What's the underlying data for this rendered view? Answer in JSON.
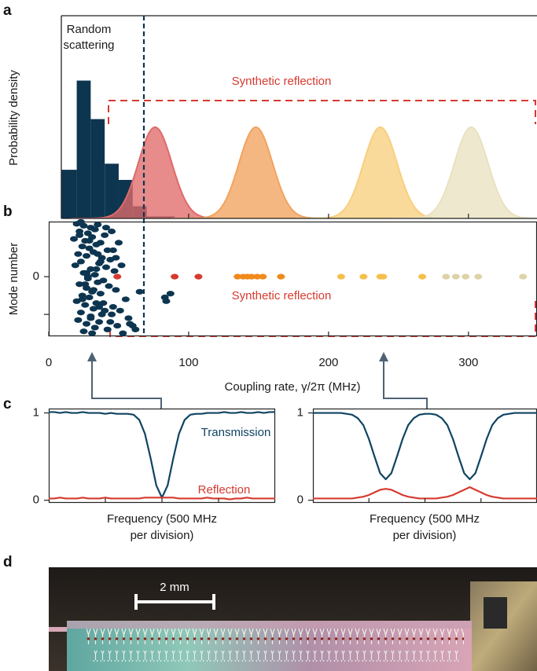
{
  "panel_labels": [
    "a",
    "b",
    "c",
    "d"
  ],
  "chart_data": [
    {
      "type": "histogram",
      "ylabel": "Probability density",
      "annotation_lines": [
        "Random",
        "scattering"
      ],
      "synthetic_label": "Synthetic reflection",
      "xlim": [
        0,
        349
      ],
      "ylim": [
        0,
        1
      ],
      "bins": [
        9,
        20,
        30,
        40,
        50,
        60,
        70,
        90
      ],
      "values": [
        0.24,
        0.68,
        0.49,
        0.27,
        0.19,
        0.06,
        0.01
      ],
      "color": "#0d3550",
      "vline": 68,
      "curves": [
        {
          "mean": 76,
          "sd": 12,
          "peak": 0.45,
          "color": "#e06a6a"
        },
        {
          "mean": 148,
          "sd": 12,
          "peak": 0.45,
          "color": "#f2a35e"
        },
        {
          "mean": 237,
          "sd": 12,
          "peak": 0.45,
          "color": "#f8cf7e"
        },
        {
          "mean": 302,
          "sd": 12,
          "peak": 0.45,
          "color": "#e9e1c0"
        }
      ]
    },
    {
      "type": "scatter",
      "ylabel": "Mode number",
      "xlabel": "Coupling rate, γ/2π (MHz)",
      "synthetic_label": "Synthetic reflection",
      "xlim": [
        0,
        349
      ],
      "ylim": [
        -1.58,
        1.46
      ],
      "xticks": [
        0,
        100,
        200,
        300
      ],
      "yticks": [
        0,
        {
          "value": -1,
          "label": null
        }
      ],
      "vline": 68,
      "series": [
        {
          "color": "#0d3550",
          "x": [
            20,
            25,
            30,
            35,
            22,
            28,
            33,
            40,
            18,
            26,
            31,
            37,
            45,
            24,
            29,
            34,
            42,
            21,
            27,
            32,
            38,
            50,
            23,
            36,
            44,
            19,
            30,
            41,
            47,
            25,
            33,
            28,
            39,
            52,
            22,
            35,
            27,
            43,
            31,
            48,
            24,
            37,
            29,
            55,
            20,
            34,
            26,
            46,
            32,
            40,
            23,
            38,
            30,
            57,
            21,
            36,
            27,
            49,
            33,
            42,
            25,
            31,
            44,
            60,
            22,
            35,
            28,
            51,
            37,
            24,
            41,
            30,
            46,
            26,
            34,
            53,
            29,
            39,
            23,
            45,
            32,
            62,
            27,
            36,
            48,
            58,
            65,
            83,
            87,
            84
          ],
          "values": [
            1.4,
            1.35,
            1.3,
            1.38,
            1.2,
            1.15,
            1.25,
            1.1,
            1.0,
            0.95,
            1.05,
            0.9,
            1.2,
            0.8,
            0.75,
            0.85,
            0.7,
            0.6,
            0.55,
            0.65,
            0.5,
            0.9,
            0.4,
            0.35,
            0.45,
            0.3,
            0.2,
            0.25,
            0.15,
            0.1,
            0.05,
            -0.05,
            -0.1,
            0.3,
            -0.2,
            -0.15,
            -0.3,
            -0.25,
            -0.4,
            -0.35,
            -0.5,
            -0.45,
            -0.55,
            -0.6,
            -0.65,
            -0.7,
            -0.75,
            -0.8,
            -0.85,
            -0.9,
            -0.95,
            -1.0,
            -1.05,
            -1.1,
            -1.15,
            -1.2,
            -1.25,
            -1.3,
            -1.35,
            -1.4,
            -1.45,
            -1.5,
            -1.2,
            -1.3,
            1.1,
            0.6,
            0.0,
            -0.9,
            0.4,
            -0.6,
            1.3,
            -1.1,
            0.7,
            -0.2,
            0.2,
            -1.5,
            0.95,
            -0.7,
            1.45,
            -1.0,
            -0.35,
            -1.4,
            0.1,
            -0.8,
            0.5,
            -1.25,
            -0.4,
            -0.55,
            -0.45,
            -0.65
          ]
        },
        {
          "color": "#d63a2f",
          "x": [
            49,
            90,
            107
          ],
          "values": [
            0,
            0,
            0
          ]
        },
        {
          "color": "#f08a1c",
          "x": [
            135,
            139,
            142,
            145,
            149,
            153,
            166
          ],
          "values": [
            0,
            0,
            0,
            0,
            0,
            0,
            0
          ]
        },
        {
          "color": "#f6bf4a",
          "x": [
            209,
            225,
            237,
            239,
            267
          ],
          "values": [
            0,
            0,
            0,
            0,
            0
          ]
        },
        {
          "color": "#ddd3a8",
          "x": [
            284,
            291,
            298,
            307,
            339
          ],
          "values": [
            0,
            0,
            0,
            0,
            0
          ]
        }
      ]
    },
    {
      "type": "line",
      "xlabel_lines": [
        "Frequency (500 MHz",
        "per division)"
      ],
      "xlim": [
        -1000,
        1000
      ],
      "ylim": [
        -0.03,
        1.05
      ],
      "yticks": [
        0,
        1
      ],
      "xticks": [
        {
          "value": -500,
          "label": null
        },
        {
          "value": 0,
          "label": null
        },
        {
          "value": 500,
          "label": null
        }
      ],
      "x": [
        -1000,
        -950,
        -900,
        -850,
        -800,
        -750,
        -700,
        -650,
        -600,
        -550,
        -500,
        -450,
        -400,
        -350,
        -300,
        -250,
        -200,
        -150,
        -100,
        -50,
        0,
        50,
        100,
        150,
        200,
        250,
        300,
        350,
        400,
        450,
        500,
        550,
        600,
        650,
        700,
        750,
        800,
        850,
        900,
        950,
        1000
      ],
      "series": [
        {
          "name": "Transmission",
          "color": "#0f4463",
          "values": [
            1.01,
            1.01,
            1.0,
            1.01,
            1.0,
            1.0,
            1.01,
            1.0,
            1.0,
            1.0,
            0.99,
            1.0,
            0.99,
            0.99,
            0.99,
            0.98,
            0.92,
            0.76,
            0.48,
            0.17,
            0.03,
            0.17,
            0.48,
            0.76,
            0.92,
            0.98,
            0.99,
            0.99,
            1.0,
            1.0,
            1.0,
            1.01,
            1.0,
            1.0,
            1.01,
            1.0,
            1.0,
            1.01,
            1.0,
            1.01,
            1.01
          ]
        },
        {
          "name": "Reflection",
          "color": "#d63a2f",
          "values": [
            0.02,
            0.02,
            0.03,
            0.02,
            0.02,
            0.02,
            0.03,
            0.02,
            0.02,
            0.02,
            0.03,
            0.02,
            0.02,
            0.02,
            0.02,
            0.02,
            0.02,
            0.03,
            0.03,
            0.03,
            0.03,
            0.03,
            0.03,
            0.02,
            0.02,
            0.02,
            0.02,
            0.02,
            0.03,
            0.02,
            0.02,
            0.02,
            0.01,
            0.02,
            0.02,
            0.03,
            0.02,
            0.02,
            0.02,
            0.02,
            0.02
          ]
        }
      ]
    },
    {
      "type": "line",
      "xlabel_lines": [
        "Frequency (500 MHz",
        "per division)"
      ],
      "xlim": [
        -1000,
        1000
      ],
      "ylim": [
        -0.03,
        1.05
      ],
      "yticks": [
        0,
        1
      ],
      "xticks": [
        {
          "value": -500,
          "label": null
        },
        {
          "value": 0,
          "label": null
        },
        {
          "value": 500,
          "label": null
        }
      ],
      "x": [
        -1000,
        -950,
        -900,
        -850,
        -800,
        -750,
        -700,
        -650,
        -600,
        -550,
        -500,
        -450,
        -400,
        -350,
        -300,
        -250,
        -200,
        -150,
        -100,
        -50,
        0,
        50,
        100,
        150,
        200,
        250,
        300,
        350,
        400,
        450,
        500,
        550,
        600,
        650,
        700,
        750,
        800,
        850,
        900,
        950,
        1000
      ],
      "series": [
        {
          "color": "#0f4463",
          "values": [
            1.0,
            1.0,
            1.0,
            1.0,
            1.0,
            1.0,
            0.99,
            0.98,
            0.94,
            0.86,
            0.7,
            0.5,
            0.31,
            0.24,
            0.31,
            0.5,
            0.7,
            0.86,
            0.94,
            0.98,
            0.99,
            0.99,
            0.98,
            0.94,
            0.86,
            0.7,
            0.5,
            0.31,
            0.24,
            0.31,
            0.5,
            0.7,
            0.86,
            0.94,
            0.98,
            0.99,
            1.0,
            1.0,
            1.0,
            1.0,
            1.0
          ]
        },
        {
          "color": "#d63a2f",
          "values": [
            0.02,
            0.02,
            0.02,
            0.02,
            0.02,
            0.02,
            0.02,
            0.02,
            0.03,
            0.04,
            0.06,
            0.09,
            0.12,
            0.13,
            0.12,
            0.09,
            0.06,
            0.04,
            0.03,
            0.02,
            0.02,
            0.02,
            0.02,
            0.03,
            0.04,
            0.06,
            0.09,
            0.12,
            0.15,
            0.12,
            0.09,
            0.06,
            0.04,
            0.03,
            0.02,
            0.02,
            0.02,
            0.02,
            0.02,
            0.02,
            0.02
          ]
        }
      ]
    }
  ],
  "photo": {
    "scale_label": "2 mm"
  }
}
